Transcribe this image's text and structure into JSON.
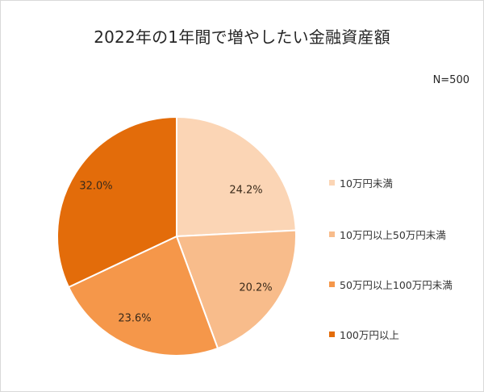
{
  "chart_data": {
    "type": "pie",
    "title": "2022年の1年間で増やしたい金融資産額",
    "annotation": "N=500",
    "categories": [
      "10万円未満",
      "10万円以上50万円未満",
      "50万円以上100万円未満",
      "100万円以上"
    ],
    "values": [
      24.2,
      20.2,
      23.6,
      32.0
    ],
    "data_labels": [
      "24.2%",
      "20.2%",
      "23.6%",
      "32.0%"
    ],
    "colors": [
      "#fbd5b5",
      "#f8bc8b",
      "#f5974a",
      "#e36c0a"
    ],
    "start_angle": "12 o'clock",
    "direction": "clockwise",
    "legend_position": "right"
  },
  "header": {
    "title": "2022年の1年間で増やしたい金融資産額",
    "sample_size": "N=500"
  },
  "legend": {
    "items": [
      {
        "label": "10万円未満",
        "color": "#fbd5b5"
      },
      {
        "label": "10万円以上50万円未満",
        "color": "#f8bc8b"
      },
      {
        "label": "50万円以上100万円未満",
        "color": "#f5974a"
      },
      {
        "label": "100万円以上",
        "color": "#e36c0a"
      }
    ]
  },
  "labels": [
    "24.2%",
    "20.2%",
    "23.6%",
    "32.0%"
  ]
}
